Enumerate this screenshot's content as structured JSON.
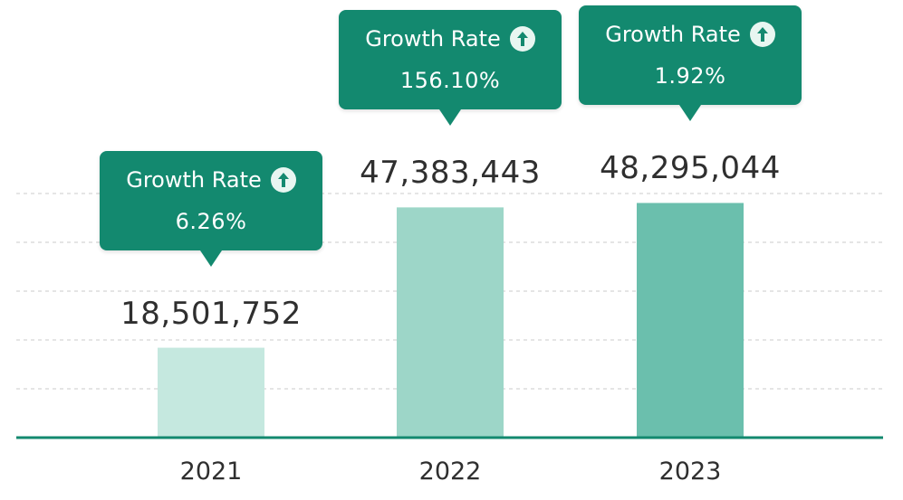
{
  "chart_data": {
    "type": "bar",
    "categories": [
      "2021",
      "2022",
      "2023"
    ],
    "values": [
      18501752,
      47383443,
      48295044
    ],
    "value_labels": [
      "18,501,752",
      "47,383,443",
      "48,295,044"
    ],
    "ylim": [
      0,
      49500000
    ],
    "grid": true,
    "annotations": [
      {
        "label": "Growth Rate",
        "icon": "arrow-up-icon",
        "rate": "6.26%"
      },
      {
        "label": "Growth Rate",
        "icon": "arrow-up-icon",
        "rate": "156.10%"
      },
      {
        "label": "Growth Rate",
        "icon": "arrow-up-icon",
        "rate": "1.92%"
      }
    ],
    "colors": {
      "bars": [
        "#c5e8df",
        "#9dd6c8",
        "#6bbfad"
      ],
      "callout": "#13896f",
      "axis": "#13896f",
      "grid": "#d5d5d5",
      "text": "#2f2f2f"
    }
  }
}
